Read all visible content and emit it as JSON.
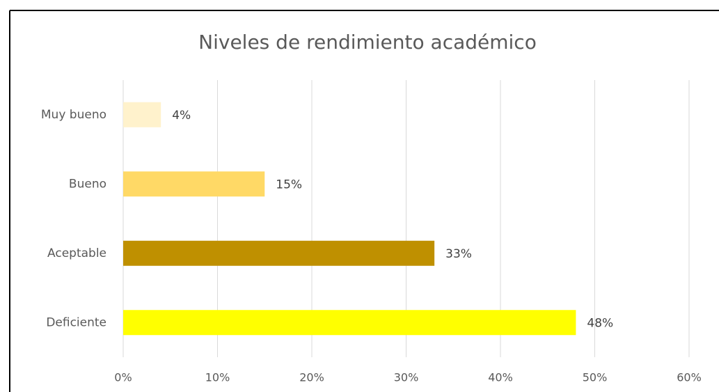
{
  "chart_data": {
    "type": "bar",
    "orientation": "horizontal",
    "title": "Niveles de rendimiento académico",
    "categories": [
      "Muy bueno",
      "Bueno",
      "Aceptable",
      "Deficiente"
    ],
    "values": [
      4,
      15,
      33,
      48
    ],
    "value_labels": [
      "4%",
      "15%",
      "33%",
      "48%"
    ],
    "colors": [
      "#FFF2CC",
      "#FFD966",
      "#BF9000",
      "#FFFF00"
    ],
    "xlim": [
      0,
      60
    ],
    "xticks": [
      {
        "value": 0,
        "label": "0%"
      },
      {
        "value": 10,
        "label": "10%"
      },
      {
        "value": 20,
        "label": "20%"
      },
      {
        "value": 30,
        "label": "30%"
      },
      {
        "value": 40,
        "label": "40%"
      },
      {
        "value": 50,
        "label": "50%"
      },
      {
        "value": 60,
        "label": "60%"
      }
    ],
    "grid": true
  }
}
